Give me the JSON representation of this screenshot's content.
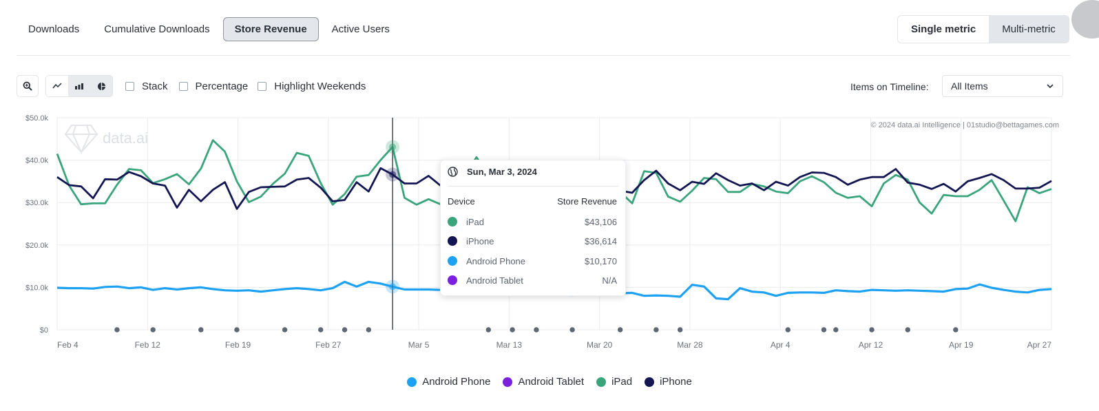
{
  "tabs": [
    {
      "label": "Downloads",
      "active": false
    },
    {
      "label": "Cumulative Downloads",
      "active": false
    },
    {
      "label": "Store Revenue",
      "active": true
    },
    {
      "label": "Active Users",
      "active": false
    }
  ],
  "metric_toggle": {
    "single": "Single metric",
    "multi": "Multi-metric"
  },
  "toolbar": {
    "zoom_icon": "zoom-in-icon",
    "chart_types": [
      "line-chart-icon",
      "bar-chart-icon",
      "pie-chart-icon"
    ],
    "checkboxes": [
      "Stack",
      "Percentage",
      "Highlight Weekends"
    ]
  },
  "items_on_timeline": {
    "label": "Items on Timeline:",
    "value": "All Items"
  },
  "watermark": "data.ai",
  "copyright": "© 2024 data.ai Intelligence | 01studio@bettagames.com",
  "tooltip": {
    "date": "Sun, Mar 3, 2024",
    "col_device": "Device",
    "col_metric": "Store Revenue",
    "rows": [
      {
        "name": "iPad",
        "value": "$43,106",
        "color": "#3aa57c"
      },
      {
        "name": "iPhone",
        "value": "$36,614",
        "color": "#141653"
      },
      {
        "name": "Android Phone",
        "value": "$10,170",
        "color": "#1da1f2"
      },
      {
        "name": "Android Tablet",
        "value": "N/A",
        "color": "#7b1fe0"
      }
    ]
  },
  "legend": [
    {
      "name": "Android Phone",
      "color": "#1da1f2"
    },
    {
      "name": "Android Tablet",
      "color": "#7b1fe0"
    },
    {
      "name": "iPad",
      "color": "#3aa57c"
    },
    {
      "name": "iPhone",
      "color": "#141653"
    }
  ],
  "chart_data": {
    "type": "line",
    "start_date": "2024-02-04",
    "end_date": "2024-04-27",
    "x_tick_labels": [
      "Feb 4",
      "Feb 12",
      "Feb 19",
      "Feb 27",
      "Mar 5",
      "Mar 13",
      "Mar 20",
      "Mar 28",
      "Apr 4",
      "Apr 12",
      "Apr 19",
      "Apr 27"
    ],
    "y_tick_labels": [
      "$0",
      "$10.0k",
      "$20.0k",
      "$30.0k",
      "$40.0k",
      "$50.0k"
    ],
    "ylim": [
      0,
      50000
    ],
    "grid": true,
    "legend_position": "bottom-center",
    "highlighted_date": "2024-03-03",
    "marker_dates": [
      "2024-02-09",
      "2024-02-12",
      "2024-02-16",
      "2024-02-19",
      "2024-02-23",
      "2024-02-26",
      "2024-02-28",
      "2024-03-01",
      "2024-03-11",
      "2024-03-13",
      "2024-03-15",
      "2024-03-18",
      "2024-03-22",
      "2024-03-25",
      "2024-03-27",
      "2024-04-05",
      "2024-04-08",
      "2024-04-09",
      "2024-04-12",
      "2024-04-15",
      "2024-04-19"
    ],
    "series": [
      {
        "name": "iPad",
        "color": "#3aa57c",
        "values": [
          41500,
          34000,
          29600,
          29800,
          29800,
          34200,
          37900,
          37600,
          34600,
          35500,
          36700,
          34300,
          38000,
          44700,
          42000,
          35000,
          30100,
          31400,
          34400,
          36800,
          41700,
          41000,
          34600,
          29500,
          32000,
          36100,
          36500,
          40000,
          43106,
          31100,
          29500,
          30800,
          29600,
          31500,
          36000,
          40700,
          36500,
          34000,
          34000,
          33500,
          32500,
          31500,
          31000,
          31500,
          32000,
          33000,
          32200,
          32500,
          29800,
          37400,
          37000,
          31400,
          30200,
          32800,
          35800,
          35500,
          32500,
          32500,
          34400,
          33800,
          32600,
          32200,
          35000,
          36200,
          34800,
          32300,
          31100,
          31500,
          29100,
          34500,
          36500,
          35400,
          30000,
          27400,
          31800,
          31500,
          31500,
          33000,
          35300,
          30500,
          25600,
          33600,
          32200,
          33200
        ]
      },
      {
        "name": "iPhone",
        "color": "#141653",
        "values": [
          36000,
          34100,
          33800,
          31000,
          35500,
          35400,
          37200,
          36200,
          34500,
          34000,
          28800,
          33000,
          30300,
          33000,
          34800,
          28500,
          32500,
          33600,
          33700,
          33800,
          35400,
          35800,
          33500,
          30300,
          30600,
          34800,
          32600,
          38100,
          36614,
          34500,
          34500,
          36300,
          34000,
          33500,
          33200,
          33500,
          34000,
          34000,
          33600,
          33200,
          33500,
          34000,
          33800,
          33500,
          33000,
          32800,
          33000,
          32800,
          32300,
          35300,
          37500,
          34500,
          32900,
          34900,
          34400,
          36900,
          35300,
          34000,
          34500,
          32900,
          34900,
          34000,
          36000,
          37100,
          37000,
          36000,
          34200,
          35400,
          36000,
          36000,
          37900,
          34700,
          34200,
          33200,
          34400,
          32600,
          35000,
          35800,
          36700,
          35300,
          33300,
          33300,
          33500,
          35100
        ]
      },
      {
        "name": "Android Phone",
        "color": "#1da1f2",
        "values": [
          9900,
          9800,
          9800,
          9700,
          10100,
          10200,
          9800,
          10000,
          9400,
          9800,
          9500,
          9800,
          10000,
          9600,
          9300,
          9200,
          9300,
          9000,
          9300,
          9600,
          9800,
          9600,
          9300,
          9800,
          11300,
          10200,
          11300,
          10900,
          10170,
          9500,
          9500,
          9500,
          9400,
          9400,
          9300,
          9200,
          9100,
          9000,
          8900,
          8800,
          8700,
          8500,
          8300,
          8200,
          8300,
          8400,
          8400,
          8600,
          8700,
          8000,
          8100,
          8000,
          7800,
          10600,
          10200,
          7400,
          7200,
          9800,
          9000,
          8800,
          8000,
          8700,
          8800,
          8800,
          8700,
          9300,
          9100,
          9000,
          9400,
          9300,
          9200,
          9300,
          9200,
          9100,
          9000,
          9600,
          9700,
          10700,
          9900,
          9400,
          9000,
          8800,
          9400,
          9600
        ]
      }
    ]
  }
}
